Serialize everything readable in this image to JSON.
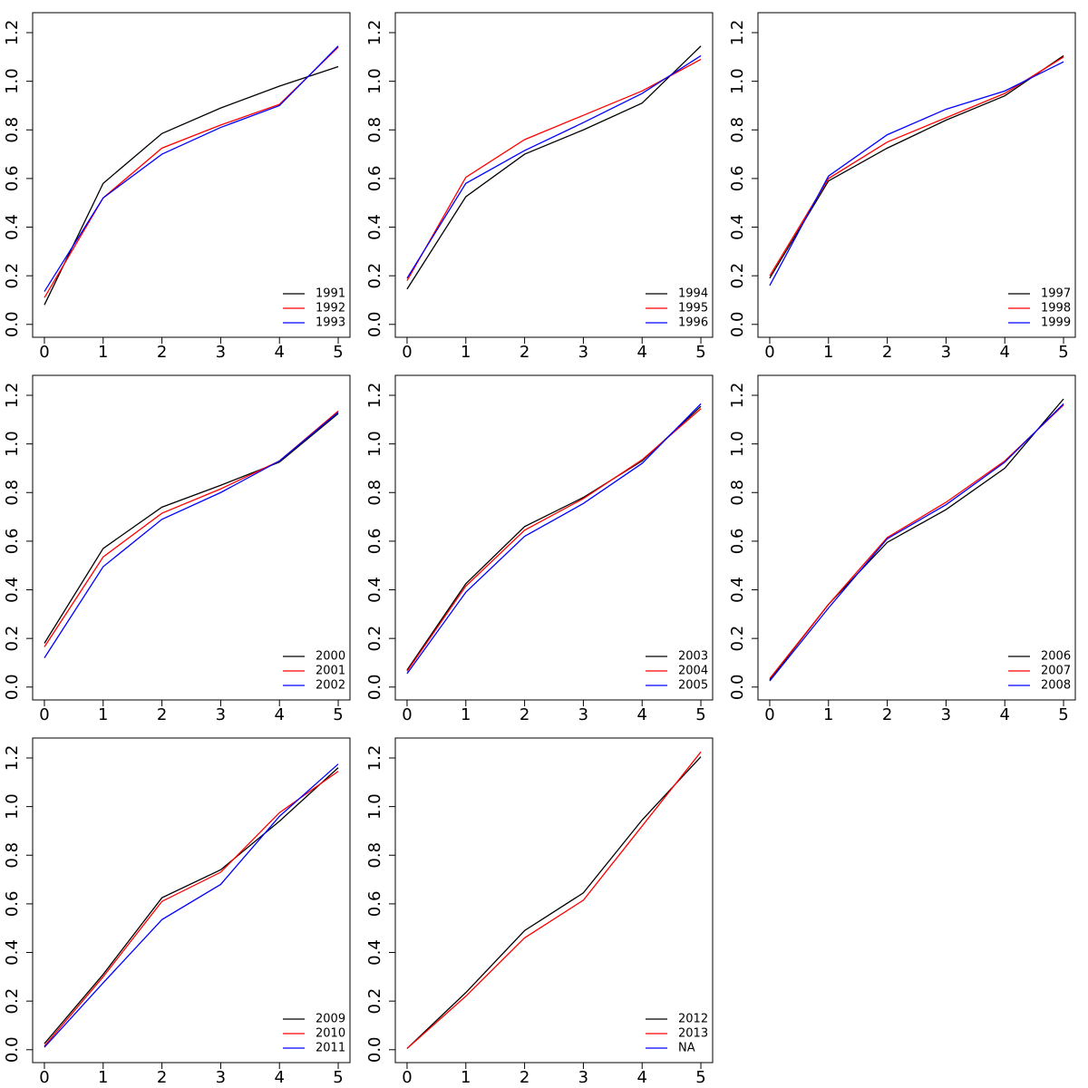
{
  "chart_data": [
    {
      "type": "line",
      "x": [
        0,
        1,
        2,
        3,
        4,
        5
      ],
      "xlim": [
        -0.2,
        5.2
      ],
      "ylim": [
        -0.053,
        1.282
      ],
      "xticks": [
        0,
        1,
        2,
        3,
        4,
        5
      ],
      "yticks": [
        {
          "value": 0,
          "label": "0.0"
        },
        0.2,
        0.4,
        0.6,
        0.8,
        {
          "value": 1,
          "label": "1.0"
        },
        1.2
      ],
      "legend": "bottomright",
      "series": [
        {
          "name": "1991",
          "color": "#000000",
          "values": [
            0.08,
            0.58,
            0.785,
            0.89,
            0.98,
            1.06
          ]
        },
        {
          "name": "1992",
          "color": "#ff0000",
          "values": [
            0.11,
            0.52,
            0.725,
            0.82,
            0.905,
            1.14
          ]
        },
        {
          "name": "1993",
          "color": "#0000ff",
          "values": [
            0.135,
            0.52,
            0.7,
            0.81,
            0.9,
            1.145
          ]
        }
      ]
    },
    {
      "type": "line",
      "x": [
        0,
        1,
        2,
        3,
        4,
        5
      ],
      "xlim": [
        -0.2,
        5.2
      ],
      "ylim": [
        -0.053,
        1.282
      ],
      "xticks": [
        0,
        1,
        2,
        3,
        4,
        5
      ],
      "yticks": [
        {
          "value": 0,
          "label": "0.0"
        },
        0.2,
        0.4,
        0.6,
        0.8,
        {
          "value": 1,
          "label": "1.0"
        },
        1.2
      ],
      "legend": "bottomright",
      "series": [
        {
          "name": "1994",
          "color": "#000000",
          "values": [
            0.145,
            0.525,
            0.7,
            0.8,
            0.91,
            1.145
          ]
        },
        {
          "name": "1995",
          "color": "#ff0000",
          "values": [
            0.18,
            0.605,
            0.76,
            0.86,
            0.96,
            1.09
          ]
        },
        {
          "name": "1996",
          "color": "#0000ff",
          "values": [
            0.19,
            0.58,
            0.715,
            0.83,
            0.95,
            1.105
          ]
        }
      ]
    },
    {
      "type": "line",
      "x": [
        0,
        1,
        2,
        3,
        4,
        5
      ],
      "xlim": [
        -0.2,
        5.2
      ],
      "ylim": [
        -0.053,
        1.282
      ],
      "xticks": [
        0,
        1,
        2,
        3,
        4,
        5
      ],
      "yticks": [
        {
          "value": 0,
          "label": "0.0"
        },
        0.2,
        0.4,
        0.6,
        0.8,
        {
          "value": 1,
          "label": "1.0"
        },
        1.2
      ],
      "legend": "bottomright",
      "series": [
        {
          "name": "1997",
          "color": "#000000",
          "values": [
            0.19,
            0.59,
            0.725,
            0.84,
            0.94,
            1.105
          ]
        },
        {
          "name": "1998",
          "color": "#ff0000",
          "values": [
            0.2,
            0.6,
            0.75,
            0.85,
            0.95,
            1.1
          ]
        },
        {
          "name": "1999",
          "color": "#0000ff",
          "values": [
            0.16,
            0.61,
            0.78,
            0.885,
            0.96,
            1.08
          ]
        }
      ]
    },
    {
      "type": "line",
      "x": [
        0,
        1,
        2,
        3,
        4,
        5
      ],
      "xlim": [
        -0.2,
        5.2
      ],
      "ylim": [
        -0.053,
        1.282
      ],
      "xticks": [
        0,
        1,
        2,
        3,
        4,
        5
      ],
      "yticks": [
        {
          "value": 0,
          "label": "0.0"
        },
        0.2,
        0.4,
        0.6,
        0.8,
        {
          "value": 1,
          "label": "1.0"
        },
        1.2
      ],
      "legend": "bottomright",
      "series": [
        {
          "name": "2000",
          "color": "#000000",
          "values": [
            0.18,
            0.57,
            0.74,
            0.83,
            0.925,
            1.125
          ]
        },
        {
          "name": "2001",
          "color": "#ff0000",
          "values": [
            0.165,
            0.535,
            0.715,
            0.815,
            0.93,
            1.135
          ]
        },
        {
          "name": "2002",
          "color": "#0000ff",
          "values": [
            0.12,
            0.495,
            0.69,
            0.8,
            0.93,
            1.13
          ]
        }
      ]
    },
    {
      "type": "line",
      "x": [
        0,
        1,
        2,
        3,
        4,
        5
      ],
      "xlim": [
        -0.2,
        5.2
      ],
      "ylim": [
        -0.053,
        1.282
      ],
      "xticks": [
        0,
        1,
        2,
        3,
        4,
        5
      ],
      "yticks": [
        {
          "value": 0,
          "label": "0.0"
        },
        0.2,
        0.4,
        0.6,
        0.8,
        {
          "value": 1,
          "label": "1.0"
        },
        1.2
      ],
      "legend": "bottomright",
      "series": [
        {
          "name": "2003",
          "color": "#000000",
          "values": [
            0.07,
            0.425,
            0.66,
            0.78,
            0.93,
            1.155
          ]
        },
        {
          "name": "2004",
          "color": "#ff0000",
          "values": [
            0.065,
            0.415,
            0.645,
            0.775,
            0.935,
            1.145
          ]
        },
        {
          "name": "2005",
          "color": "#0000ff",
          "values": [
            0.055,
            0.39,
            0.62,
            0.755,
            0.92,
            1.165
          ]
        }
      ]
    },
    {
      "type": "line",
      "x": [
        0,
        1,
        2,
        3,
        4,
        5
      ],
      "xlim": [
        -0.2,
        5.2
      ],
      "ylim": [
        -0.053,
        1.282
      ],
      "xticks": [
        0,
        1,
        2,
        3,
        4,
        5
      ],
      "yticks": [
        {
          "value": 0,
          "label": "0.0"
        },
        0.2,
        0.4,
        0.6,
        0.8,
        {
          "value": 1,
          "label": "1.0"
        },
        1.2
      ],
      "legend": "bottomright",
      "series": [
        {
          "name": "2006",
          "color": "#000000",
          "values": [
            0.03,
            0.34,
            0.595,
            0.73,
            0.9,
            1.185
          ]
        },
        {
          "name": "2007",
          "color": "#ff0000",
          "values": [
            0.035,
            0.34,
            0.615,
            0.76,
            0.93,
            1.16
          ]
        },
        {
          "name": "2008",
          "color": "#0000ff",
          "values": [
            0.025,
            0.325,
            0.61,
            0.75,
            0.925,
            1.165
          ]
        }
      ]
    },
    {
      "type": "line",
      "x": [
        0,
        1,
        2,
        3,
        4,
        5
      ],
      "xlim": [
        -0.2,
        5.2
      ],
      "ylim": [
        -0.053,
        1.282
      ],
      "xticks": [
        0,
        1,
        2,
        3,
        4,
        5
      ],
      "yticks": [
        {
          "value": 0,
          "label": "0.0"
        },
        0.2,
        0.4,
        0.6,
        0.8,
        {
          "value": 1,
          "label": "1.0"
        },
        1.2
      ],
      "legend": "bottomright",
      "series": [
        {
          "name": "2009",
          "color": "#000000",
          "values": [
            0.025,
            0.31,
            0.625,
            0.74,
            0.94,
            1.16
          ]
        },
        {
          "name": "2010",
          "color": "#ff0000",
          "values": [
            0.015,
            0.3,
            0.61,
            0.73,
            0.975,
            1.145
          ]
        },
        {
          "name": "2011",
          "color": "#0000ff",
          "values": [
            0.01,
            0.275,
            0.535,
            0.68,
            0.96,
            1.175
          ]
        }
      ]
    },
    {
      "type": "line",
      "x": [
        0,
        1,
        2,
        3,
        4,
        5
      ],
      "xlim": [
        -0.2,
        5.2
      ],
      "ylim": [
        -0.053,
        1.282
      ],
      "xticks": [
        0,
        1,
        2,
        3,
        4,
        5
      ],
      "yticks": [
        {
          "value": 0,
          "label": "0.0"
        },
        0.2,
        0.4,
        0.6,
        0.8,
        {
          "value": 1,
          "label": "1.0"
        },
        1.2
      ],
      "legend": "bottomright",
      "series": [
        {
          "name": "2012",
          "color": "#000000",
          "values": [
            0.005,
            0.235,
            0.49,
            0.645,
            0.945,
            1.205
          ]
        },
        {
          "name": "2013",
          "color": "#ff0000",
          "values": [
            0.005,
            0.22,
            0.46,
            0.615,
            0.92,
            1.225
          ]
        },
        {
          "name": "NA",
          "color": "#0000ff",
          "values": [
            null,
            null,
            null,
            null,
            null,
            null
          ]
        }
      ]
    }
  ]
}
